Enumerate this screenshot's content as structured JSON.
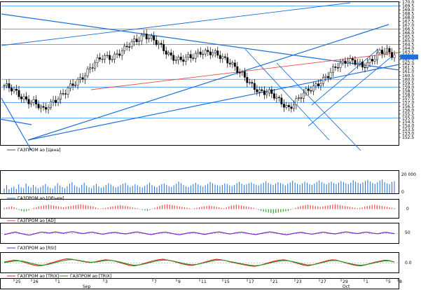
{
  "colors": {
    "background": "#ffffff",
    "grid": "#2f8fff",
    "trendline": "#1e6fd8",
    "midline": "#e84a4a",
    "candle_up": "#ffffff",
    "candle_down": "#000000",
    "volume": "#1e6fd8",
    "ad_pos": "#e84a4a",
    "ad_neg": "#2e9a2e",
    "rsi": "#7a22c8",
    "trix_a": "#e82020",
    "trix_b": "#1f9a1f",
    "current_box": "#1e6fd8"
  },
  "panels": {
    "price": {
      "legend": "ГАЗПРОМ ао [Цена]"
    },
    "volume": {
      "legend": "ГАЗПРОМ ао [Объем]",
      "ticks": [
        "20 000",
        "0"
      ]
    },
    "ad": {
      "legend": "ГАЗПРОМ ао [AD]",
      "ticks": [
        "0"
      ]
    },
    "rsi": {
      "legend": "ГАЗПРОМ ао [RSI]",
      "ticks": [
        "50"
      ]
    },
    "trix": {
      "legend_a": "ГАЗПРОМ ао [TRIX]",
      "legend_b": "ГАЗПРОМ ао [TRIX]",
      "ticks": [
        "0.0"
      ]
    }
  },
  "chart_data": [
    {
      "type": "candlestick",
      "title": "ГАЗПРОМ ао [Цена]",
      "ylim": [
        151.5,
        170.0
      ],
      "y_ticks": [
        152.5,
        153.0,
        153.5,
        154.0,
        154.5,
        155.0,
        155.5,
        156.0,
        156.5,
        157.0,
        157.5,
        158.0,
        158.5,
        159.0,
        159.5,
        160.0,
        160.5,
        161.0,
        161.5,
        162.0,
        162.5,
        163.0,
        163.5,
        164.0,
        164.5,
        165.0,
        165.5,
        166.0,
        166.5,
        167.0,
        167.5,
        168.0,
        168.5,
        169.0,
        169.5,
        170.0
      ],
      "y_tick_labels": [
        "152.5",
        "153.0",
        "153.5",
        "154.0",
        "154.5",
        "155.0",
        "155.5",
        "156.0",
        "156.5",
        "157.0",
        "157.5",
        "158.0",
        "158.5",
        "159.0",
        "159.5",
        "160.0",
        "160.5",
        "161.0",
        "161.5",
        "162.0",
        "162.5",
        "163.0",
        "163.5",
        "164.0",
        "164.5",
        "165.0",
        "165.5",
        "166.0",
        "166.5",
        "167.0",
        "167.5",
        "168.0",
        "168.5",
        "169.0",
        "169.5",
        "170.0"
      ],
      "horizontal_levels": [
        169.5,
        166.5,
        164.5,
        160.0,
        159.0,
        157.0,
        155.0
      ],
      "current_price": 162.9,
      "close_path": [
        [
          0,
          159.2
        ],
        [
          7,
          157.8
        ],
        [
          12,
          157.0
        ],
        [
          16,
          155.9
        ],
        [
          20,
          157.3
        ],
        [
          25,
          158.3
        ],
        [
          30,
          159.8
        ],
        [
          35,
          161.5
        ],
        [
          40,
          162.8
        ],
        [
          44,
          163.0
        ],
        [
          49,
          163.8
        ],
        [
          53,
          164.9
        ],
        [
          57,
          165.9
        ],
        [
          60,
          165.2
        ],
        [
          64,
          164.1
        ],
        [
          68,
          163.1
        ],
        [
          72,
          162.4
        ],
        [
          76,
          162.8
        ],
        [
          80,
          163.7
        ],
        [
          84,
          163.4
        ],
        [
          88,
          162.9
        ],
        [
          92,
          162.4
        ],
        [
          96,
          160.8
        ],
        [
          100,
          159.4
        ],
        [
          104,
          158.6
        ],
        [
          108,
          158.2
        ],
        [
          112,
          157.2
        ],
        [
          116,
          156.4
        ],
        [
          120,
          157.4
        ],
        [
          124,
          158.6
        ],
        [
          128,
          159.6
        ],
        [
          132,
          160.4
        ],
        [
          136,
          161.8
        ],
        [
          140,
          162.7
        ],
        [
          144,
          162.0
        ],
        [
          146,
          161.4
        ],
        [
          150,
          162.7
        ],
        [
          153,
          163.7
        ],
        [
          156,
          163.5
        ],
        [
          158,
          163.0
        ]
      ]
    },
    {
      "type": "bar",
      "title": "ГАЗПРОМ ао [Объем]",
      "ylim": [
        0,
        20000
      ],
      "values": [
        4500,
        7500,
        3800,
        5200,
        6200,
        4100,
        8200,
        5600,
        4800,
        9200,
        6500,
        5400,
        7800,
        6100,
        4700,
        5900,
        7200,
        8500,
        6300,
        5100,
        4400,
        6800,
        9400,
        7100,
        5800,
        4900,
        6600,
        8900,
        10200,
        7400,
        6200,
        5300,
        7900,
        9800,
        6900,
        5600,
        4600,
        7300,
        8600,
        6400,
        5200,
        6100,
        7800,
        9200,
        8100,
        6700,
        5500,
        6300,
        7600,
        8800,
        9600,
        7200,
        5900,
        6800,
        8300,
        7400,
        6100,
        5400,
        6900,
        8200,
        9900,
        7600,
        6400,
        5700,
        7100,
        8400,
        9100,
        7800,
        6600,
        5900,
        7400,
        8700,
        10800,
        9300,
        7600,
        6500,
        5800,
        7200,
        8500,
        9700,
        8300,
        7100,
        6200,
        7500,
        8800,
        10400,
        9200,
        8100,
        7300,
        6800,
        7900,
        9100,
        8600,
        7400,
        6700,
        7800,
        9500,
        10600,
        8900,
        7600,
        8300,
        9400,
        10100,
        8700,
        7900,
        7200,
        8600,
        9800,
        11200,
        9600,
        8400,
        7700,
        8900,
        10300,
        9500,
        8600,
        7400,
        8800,
        10100,
        11600,
        9900,
        8700,
        8000,
        9200,
        10600,
        9700,
        8500,
        7800,
        9100,
        10400,
        11900,
        10200,
        9000,
        8300,
        9600,
        10800,
        9400,
        8600,
        9900,
        11300,
        10500,
        9300,
        8500,
        9800,
        12100,
        10700,
        9600,
        8800,
        10100,
        11400,
        12400,
        10900,
        9500,
        8700,
        10200,
        11700,
        12700,
        10300,
        9100,
        8400,
        10600,
        11200
      ]
    },
    {
      "type": "bar",
      "title": "ГАЗПРОМ ао [AD]",
      "ylim": [
        -1,
        1
      ],
      "values": [
        0.15,
        0.2,
        0.25,
        0.3,
        0.2,
        0.1,
        -0.1,
        -0.2,
        -0.3,
        -0.25,
        -0.15,
        0.05,
        0.15,
        0.2,
        0.3,
        0.35,
        0.4,
        0.45,
        0.5,
        0.45,
        0.4,
        0.35,
        0.3,
        0.25,
        0.2,
        0.25,
        0.3,
        0.35,
        0.4,
        0.45,
        0.5,
        0.55,
        0.5,
        0.45,
        0.4,
        0.35,
        0.3,
        0.2,
        0.1,
        0.05,
        0.1,
        0.15,
        0.2,
        0.25,
        0.3,
        0.35,
        0.4,
        0.45,
        0.4,
        0.35,
        0.3,
        0.25,
        0.2,
        0.15,
        0.1,
        -0.05,
        -0.1,
        -0.15,
        -0.2,
        -0.1,
        0.05,
        0.15,
        0.25,
        0.35,
        0.45,
        0.5,
        0.55,
        0.5,
        0.45,
        0.4,
        0.35,
        0.3,
        0.25,
        0.2,
        0.15,
        0.1,
        0.05,
        0.1,
        0.15,
        0.2,
        0.25,
        0.3,
        0.35,
        0.4,
        0.35,
        0.3,
        0.25,
        0.2,
        0.15,
        0.1,
        0.2,
        0.3,
        0.4,
        0.45,
        0.5,
        0.45,
        0.4,
        0.35,
        0.3,
        0.25,
        0.2,
        0.15,
        0.05,
        -0.1,
        -0.2,
        -0.3,
        -0.35,
        -0.4,
        -0.45,
        -0.5,
        -0.45,
        -0.4,
        -0.35,
        -0.3,
        -0.25,
        -0.2,
        -0.1,
        0.05,
        0.15,
        0.25,
        0.35,
        0.4,
        0.45,
        0.5,
        0.45,
        0.4,
        0.35,
        0.3,
        0.25,
        0.3,
        0.35,
        0.4,
        0.45,
        0.5,
        0.55,
        0.5,
        0.45,
        0.4,
        0.35,
        0.3,
        0.25,
        0.2,
        0.15,
        0.1,
        0.15,
        0.2,
        0.3,
        0.35,
        0.4,
        0.45,
        0.5,
        0.45,
        0.4,
        0.35,
        0.3,
        0.25,
        0.2,
        0.15,
        0.1
      ]
    },
    {
      "type": "line",
      "title": "ГАЗПРОМ ао [RSI]",
      "ylim": [
        0,
        100
      ],
      "ref_level": 50,
      "values": [
        45,
        48,
        52,
        55,
        58,
        54,
        50,
        47,
        44,
        42,
        46,
        50,
        54,
        58,
        57,
        55,
        53,
        56,
        59,
        57,
        54,
        52,
        55,
        58,
        60,
        58,
        55,
        52,
        50,
        53,
        56,
        58,
        55,
        52,
        49,
        47,
        50,
        53,
        55,
        57,
        55,
        52,
        50,
        48,
        51,
        54,
        57,
        59,
        56,
        53,
        50,
        47,
        45,
        48,
        51,
        54,
        56,
        58,
        55,
        52,
        49,
        46,
        44,
        47,
        50,
        53,
        55,
        57,
        54,
        51,
        48,
        46,
        49,
        52,
        55,
        57,
        59,
        56,
        53,
        50,
        48,
        51,
        54,
        56,
        58,
        55,
        52,
        49,
        47,
        45,
        48,
        51,
        54,
        57,
        59,
        57,
        54,
        51,
        48,
        46,
        44,
        47,
        50,
        53,
        55,
        57,
        54,
        51,
        49,
        47,
        50,
        53,
        56,
        58,
        55,
        52,
        50,
        48,
        51,
        54,
        57,
        59,
        57,
        54,
        52,
        50,
        53,
        56,
        58,
        56,
        53,
        51,
        49,
        52,
        55,
        57,
        55,
        52,
        50
      ]
    },
    {
      "type": "line",
      "title": "ГАЗПРОМ ао [TRIX]",
      "ylim": [
        -1,
        1
      ],
      "ref_level": 0,
      "series": [
        {
          "name": "ГАЗПРОМ ао [TRIX]",
          "values": [
            0.1,
            0.2,
            0.3,
            0.25,
            0.1,
            -0.05,
            -0.2,
            -0.3,
            -0.25,
            -0.1,
            0.05,
            0.2,
            0.35,
            0.45,
            0.4,
            0.3,
            0.2,
            0.1,
            0.05,
            0.15,
            0.25,
            0.35,
            0.3,
            0.2,
            0.05,
            -0.1,
            -0.25,
            -0.3,
            -0.2,
            -0.05,
            0.1,
            0.25,
            0.35,
            0.4,
            0.3,
            0.2,
            0.05,
            -0.1,
            -0.2,
            -0.25,
            -0.15,
            0,
            0.15,
            0.3,
            0.4,
            0.35,
            0.25,
            0.1,
            0,
            -0.1,
            -0.2,
            -0.3,
            -0.35,
            -0.25,
            -0.1,
            0.05,
            0.2,
            0.3,
            0.35,
            0.25,
            0.1,
            -0.05,
            -0.2,
            -0.3,
            -0.2,
            -0.05,
            0.1,
            0.25,
            0.35,
            0.3,
            0.15,
            0,
            -0.15,
            -0.25,
            -0.3,
            -0.2,
            -0.05,
            0.1,
            0.2,
            0.3,
            0.25,
            0.1
          ]
        },
        {
          "name": "ГАЗПРОМ ао [TRIX]",
          "values": [
            0.05,
            0.12,
            0.2,
            0.24,
            0.18,
            0.06,
            -0.08,
            -0.18,
            -0.22,
            -0.16,
            -0.04,
            0.1,
            0.22,
            0.32,
            0.36,
            0.32,
            0.24,
            0.15,
            0.08,
            0.1,
            0.18,
            0.26,
            0.28,
            0.22,
            0.12,
            -0.02,
            -0.14,
            -0.22,
            -0.2,
            -0.1,
            0.02,
            0.15,
            0.25,
            0.32,
            0.3,
            0.22,
            0.1,
            -0.02,
            -0.12,
            -0.18,
            -0.14,
            -0.04,
            0.08,
            0.2,
            0.3,
            0.32,
            0.26,
            0.15,
            0.05,
            -0.05,
            -0.14,
            -0.22,
            -0.28,
            -0.24,
            -0.14,
            -0.02,
            0.1,
            0.2,
            0.27,
            0.24,
            0.14,
            0.02,
            -0.1,
            -0.2,
            -0.18,
            -0.08,
            0.04,
            0.16,
            0.26,
            0.26,
            0.16,
            0.04,
            -0.08,
            -0.18,
            -0.22,
            -0.18,
            -0.08,
            0.04,
            0.14,
            0.22,
            0.22,
            0.12
          ]
        }
      ]
    }
  ],
  "x_axis": {
    "day_labels": [
      "25",
      "26",
      "1",
      "3",
      "7",
      "9",
      "11",
      "15",
      "17",
      "21",
      "23",
      "27",
      "29",
      "1",
      "5",
      "8"
    ],
    "month_labels": [
      "Sep",
      "Oct"
    ]
  }
}
